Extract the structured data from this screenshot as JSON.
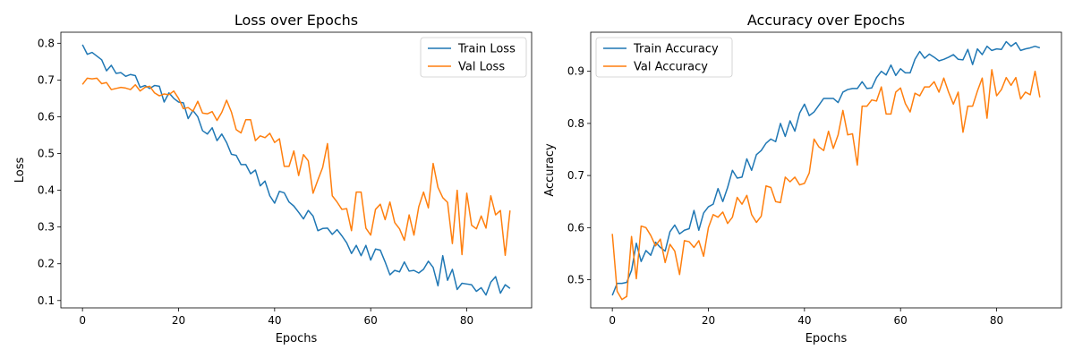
{
  "colors": {
    "train": "#1f77b4",
    "val": "#ff7f0e"
  },
  "chart_data": [
    {
      "type": "line",
      "title": "Loss over Epochs",
      "xlabel": "Epochs",
      "ylabel": "Loss",
      "xlim": [
        -4.5,
        93.5
      ],
      "ylim": [
        0.08,
        0.83
      ],
      "xticks": [
        0,
        20,
        40,
        60,
        80
      ],
      "yticks": [
        0.1,
        0.2,
        0.3,
        0.4,
        0.5,
        0.6,
        0.7,
        0.8
      ],
      "ytick_labels": [
        "0.1",
        "0.2",
        "0.3",
        "0.4",
        "0.5",
        "0.6",
        "0.7",
        "0.8"
      ],
      "legend_position": "top-right",
      "grid": false,
      "series": [
        {
          "name": "Train Loss",
          "color_key": "train",
          "values": [
            0.796,
            0.77,
            0.775,
            0.765,
            0.755,
            0.725,
            0.74,
            0.718,
            0.72,
            0.71,
            0.715,
            0.712,
            0.68,
            0.685,
            0.677,
            0.685,
            0.683,
            0.64,
            0.665,
            0.65,
            0.64,
            0.638,
            0.595,
            0.617,
            0.6,
            0.562,
            0.553,
            0.57,
            0.535,
            0.553,
            0.53,
            0.498,
            0.495,
            0.47,
            0.47,
            0.445,
            0.455,
            0.412,
            0.425,
            0.385,
            0.365,
            0.397,
            0.393,
            0.368,
            0.357,
            0.34,
            0.322,
            0.345,
            0.33,
            0.29,
            0.296,
            0.297,
            0.28,
            0.293,
            0.276,
            0.257,
            0.228,
            0.25,
            0.222,
            0.25,
            0.21,
            0.24,
            0.237,
            0.205,
            0.17,
            0.182,
            0.178,
            0.205,
            0.18,
            0.182,
            0.175,
            0.185,
            0.207,
            0.19,
            0.14,
            0.222,
            0.155,
            0.185,
            0.13,
            0.147,
            0.145,
            0.143,
            0.125,
            0.135,
            0.115,
            0.15,
            0.165,
            0.12,
            0.143,
            0.133
          ]
        },
        {
          "name": "Val Loss",
          "color_key": "val",
          "values": [
            0.688,
            0.705,
            0.703,
            0.705,
            0.69,
            0.693,
            0.674,
            0.677,
            0.68,
            0.678,
            0.674,
            0.687,
            0.67,
            0.68,
            0.683,
            0.665,
            0.657,
            0.662,
            0.66,
            0.67,
            0.65,
            0.622,
            0.625,
            0.615,
            0.642,
            0.61,
            0.608,
            0.614,
            0.59,
            0.612,
            0.645,
            0.613,
            0.565,
            0.556,
            0.592,
            0.592,
            0.535,
            0.548,
            0.543,
            0.555,
            0.53,
            0.54,
            0.465,
            0.465,
            0.507,
            0.44,
            0.497,
            0.48,
            0.392,
            0.428,
            0.462,
            0.527,
            0.385,
            0.368,
            0.348,
            0.35,
            0.29,
            0.395,
            0.395,
            0.297,
            0.278,
            0.348,
            0.362,
            0.32,
            0.368,
            0.312,
            0.295,
            0.264,
            0.333,
            0.278,
            0.355,
            0.395,
            0.352,
            0.473,
            0.408,
            0.38,
            0.367,
            0.255,
            0.4,
            0.225,
            0.392,
            0.305,
            0.295,
            0.33,
            0.297,
            0.385,
            0.333,
            0.345,
            0.223,
            0.345
          ]
        }
      ]
    },
    {
      "type": "line",
      "title": "Accuracy over Epochs",
      "xlabel": "Epochs",
      "ylabel": "Accuracy",
      "xlim": [
        -4.5,
        93.5
      ],
      "ylim": [
        0.446,
        0.975
      ],
      "xticks": [
        0,
        20,
        40,
        60,
        80
      ],
      "yticks": [
        0.5,
        0.6,
        0.7,
        0.8,
        0.9
      ],
      "ytick_labels": [
        "0.5",
        "0.6",
        "0.7",
        "0.8",
        "0.9"
      ],
      "legend_position": "top-left",
      "grid": false,
      "series": [
        {
          "name": "Train Accuracy",
          "color_key": "train",
          "values": [
            0.47,
            0.493,
            0.493,
            0.495,
            0.518,
            0.57,
            0.535,
            0.556,
            0.547,
            0.572,
            0.562,
            0.555,
            0.592,
            0.605,
            0.588,
            0.595,
            0.598,
            0.633,
            0.595,
            0.628,
            0.64,
            0.645,
            0.675,
            0.65,
            0.677,
            0.71,
            0.695,
            0.697,
            0.732,
            0.71,
            0.74,
            0.748,
            0.762,
            0.77,
            0.765,
            0.8,
            0.775,
            0.805,
            0.785,
            0.82,
            0.837,
            0.815,
            0.822,
            0.835,
            0.848,
            0.848,
            0.848,
            0.84,
            0.86,
            0.865,
            0.867,
            0.867,
            0.88,
            0.867,
            0.868,
            0.888,
            0.9,
            0.893,
            0.912,
            0.892,
            0.905,
            0.897,
            0.897,
            0.923,
            0.938,
            0.925,
            0.933,
            0.927,
            0.92,
            0.923,
            0.927,
            0.932,
            0.923,
            0.922,
            0.942,
            0.913,
            0.943,
            0.932,
            0.948,
            0.94,
            0.943,
            0.942,
            0.957,
            0.948,
            0.955,
            0.94,
            0.943,
            0.945,
            0.948,
            0.945
          ]
        },
        {
          "name": "Val Accuracy",
          "color_key": "val",
          "values": [
            0.588,
            0.478,
            0.462,
            0.468,
            0.583,
            0.502,
            0.603,
            0.6,
            0.585,
            0.565,
            0.578,
            0.533,
            0.568,
            0.555,
            0.51,
            0.575,
            0.573,
            0.562,
            0.575,
            0.545,
            0.6,
            0.625,
            0.62,
            0.63,
            0.608,
            0.62,
            0.658,
            0.645,
            0.662,
            0.625,
            0.61,
            0.622,
            0.68,
            0.677,
            0.65,
            0.648,
            0.697,
            0.688,
            0.697,
            0.682,
            0.685,
            0.705,
            0.77,
            0.755,
            0.748,
            0.785,
            0.752,
            0.778,
            0.825,
            0.778,
            0.78,
            0.72,
            0.833,
            0.833,
            0.845,
            0.843,
            0.87,
            0.818,
            0.818,
            0.86,
            0.868,
            0.838,
            0.822,
            0.858,
            0.853,
            0.87,
            0.87,
            0.88,
            0.86,
            0.887,
            0.86,
            0.837,
            0.86,
            0.783,
            0.833,
            0.833,
            0.862,
            0.887,
            0.81,
            0.903,
            0.853,
            0.865,
            0.888,
            0.873,
            0.888,
            0.847,
            0.86,
            0.855,
            0.9,
            0.85
          ]
        }
      ]
    }
  ]
}
